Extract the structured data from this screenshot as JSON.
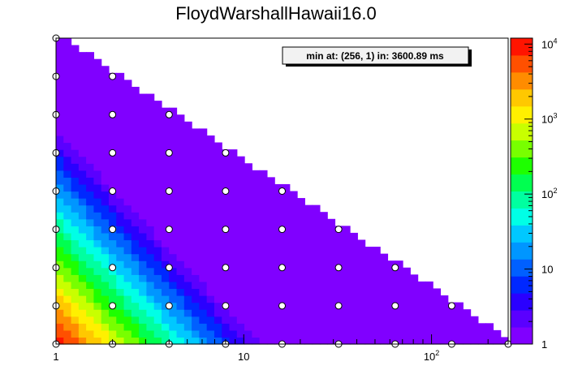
{
  "chart_data": {
    "type": "heatmap",
    "title": "FloydWarshallHawaii16.0",
    "annotation": "min at: (256, 1) in: 3600.89 ms",
    "x_scale": "log",
    "y_scale": "linear",
    "z_scale": "log",
    "xlim": [
      1,
      256
    ],
    "zlim": [
      1,
      12000
    ],
    "x_ticks": [
      {
        "value": 1,
        "base": "1",
        "exp": ""
      },
      {
        "value": 10,
        "base": "10",
        "exp": ""
      },
      {
        "value": 100,
        "base": "10",
        "exp": "2"
      }
    ],
    "z_ticks": [
      {
        "value": 1,
        "base": "1",
        "exp": ""
      },
      {
        "value": 10,
        "base": "10",
        "exp": ""
      },
      {
        "value": 100,
        "base": "10",
        "exp": "2"
      },
      {
        "value": 1000,
        "base": "10",
        "exp": "3"
      },
      {
        "value": 10000,
        "base": "10",
        "exp": "4"
      }
    ],
    "points_x": [
      1,
      2,
      4,
      8,
      16,
      32,
      64,
      128,
      256
    ],
    "palette": [
      "#8000ff",
      "#5a00ff",
      "#2a00ff",
      "#0028ff",
      "#0060ff",
      "#0096ff",
      "#00c8ff",
      "#00ffe6",
      "#00ffa0",
      "#00ff50",
      "#1eff00",
      "#78ff00",
      "#c8ff00",
      "#fff000",
      "#ffc800",
      "#ff8c00",
      "#ff5000",
      "#ff1400"
    ]
  }
}
